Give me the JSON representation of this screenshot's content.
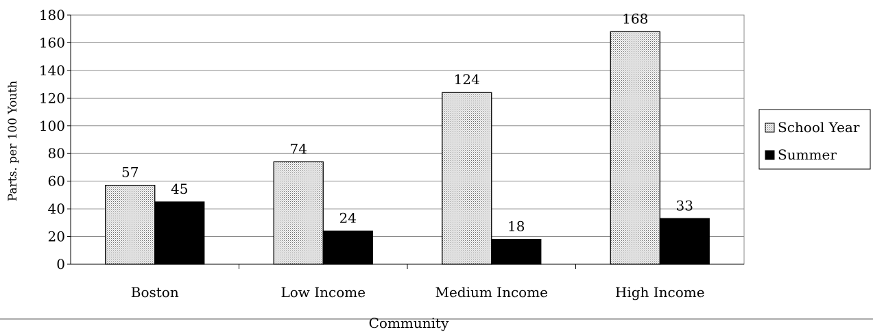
{
  "chart_data": {
    "type": "bar",
    "title": "",
    "xlabel": "Community",
    "ylabel": "Parts. per 100 Youth",
    "ylim": [
      0,
      180
    ],
    "ytick_step": 20,
    "grid": true,
    "legend_position": "right",
    "categories": [
      "Boston",
      "Low Income",
      "Medium Income",
      "High Income"
    ],
    "series": [
      {
        "name": "School Year",
        "values": [
          57,
          74,
          124,
          168
        ],
        "color": "#d9d9d9",
        "pattern": "dotted"
      },
      {
        "name": "Summer",
        "values": [
          45,
          24,
          18,
          33
        ],
        "color": "#000000"
      }
    ]
  }
}
